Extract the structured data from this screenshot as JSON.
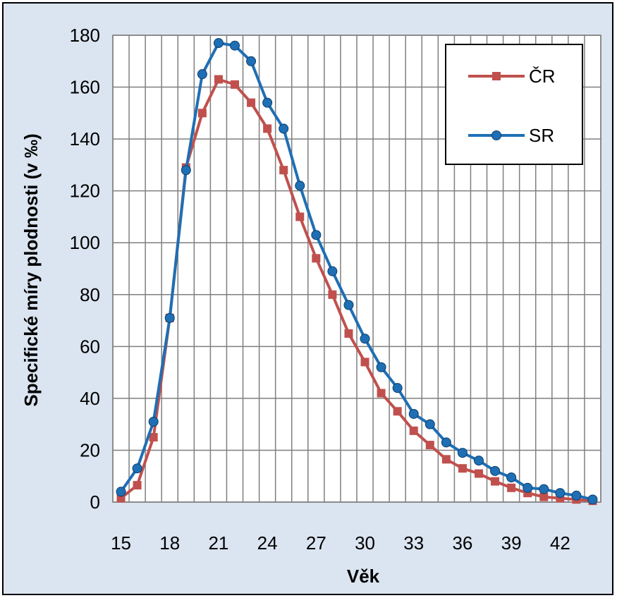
{
  "chart_data": {
    "type": "line",
    "xlabel": "Věk",
    "ylabel": "Specifické  míry plodnosti  (v ‰)",
    "ylim": [
      0,
      180
    ],
    "xlim": [
      15,
      44
    ],
    "x_ticks": [
      15,
      18,
      21,
      24,
      27,
      30,
      33,
      36,
      39,
      42
    ],
    "y_ticks": [
      0,
      20,
      40,
      60,
      80,
      100,
      120,
      140,
      160,
      180
    ],
    "x_minor_gridlines_every": 1,
    "grid": true,
    "legend_position": "top-right",
    "x": [
      15,
      16,
      17,
      18,
      19,
      20,
      21,
      22,
      23,
      24,
      25,
      26,
      27,
      28,
      29,
      30,
      31,
      32,
      33,
      34,
      35,
      36,
      37,
      38,
      39,
      40,
      41,
      42,
      43,
      44
    ],
    "series": [
      {
        "name": "ČR",
        "color": "#c0504d",
        "marker": "square",
        "values": [
          1.5,
          6.5,
          25,
          71,
          129,
          150,
          163,
          161,
          154,
          144,
          128,
          110,
          94,
          80,
          65,
          54,
          42,
          35,
          27.5,
          22,
          16.5,
          13,
          11,
          8,
          5.5,
          3.5,
          2,
          1.5,
          1,
          0.5
        ]
      },
      {
        "name": "SR",
        "color": "#1f6fb4",
        "marker": "circle",
        "values": [
          4,
          13,
          31,
          71,
          128,
          165,
          177,
          176,
          170,
          154,
          144,
          122,
          103,
          89,
          76,
          63,
          52,
          44,
          34,
          30,
          23,
          19,
          16,
          12,
          9.5,
          5.5,
          5,
          3.5,
          2.5,
          1
        ]
      }
    ]
  }
}
